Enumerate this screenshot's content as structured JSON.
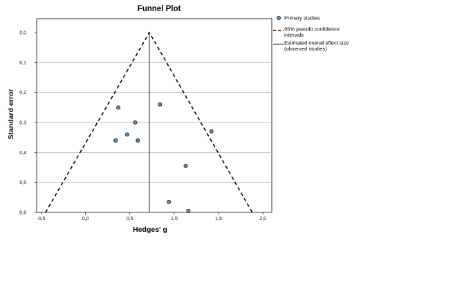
{
  "chart_data": {
    "type": "scatter",
    "title": "Funnel Plot",
    "xlabel": "Hedges' g",
    "ylabel": "Standard error",
    "xlim": [
      -0.55,
      2.1
    ],
    "ylim": [
      0.0,
      0.6
    ],
    "y_inverted": true,
    "x_ticks": [
      -0.5,
      0.0,
      0.5,
      1.0,
      1.5,
      2.0
    ],
    "x_tick_labels": [
      "-0,5",
      "0,0",
      "0,5",
      "1,0",
      "1,5",
      "2,0"
    ],
    "y_ticks": [
      0.0,
      0.1,
      0.2,
      0.3,
      0.4,
      0.5,
      0.6
    ],
    "y_tick_labels": [
      "0,0",
      "0,1",
      "0,2",
      "0,3",
      "0,4",
      "0,5",
      "0,6"
    ],
    "grid": "horizontal",
    "legend_position": "right",
    "series": [
      {
        "name": "Primary studies",
        "kind": "points",
        "color": "#4a90c8",
        "x": [
          0.37,
          0.56,
          0.47,
          0.59,
          0.34,
          0.84,
          1.42,
          1.13,
          0.94,
          1.16
        ],
        "y": [
          0.25,
          0.3,
          0.34,
          0.36,
          0.36,
          0.24,
          0.33,
          0.445,
          0.565,
          0.595
        ]
      },
      {
        "name": "95% pseudo confidence intervals",
        "kind": "dashed-line",
        "color": "#000000",
        "apex": [
          0.72,
          0.0
        ],
        "base_left": [
          -0.45,
          0.6
        ],
        "base_right": [
          1.88,
          0.6
        ]
      },
      {
        "name": "Estimated overall effect size (observed studies)",
        "kind": "vertical-line",
        "color": "#000000",
        "x": 0.72
      }
    ],
    "legend": [
      {
        "label_lines": [
          "Primary studies"
        ],
        "kind": "points"
      },
      {
        "label_lines": [
          "95% pseudo confidence",
          "intervals"
        ],
        "kind": "dashed-line"
      },
      {
        "label_lines": [
          "Estimated overall effect size",
          "(observed studies)"
        ],
        "kind": "vertical-line"
      }
    ]
  }
}
